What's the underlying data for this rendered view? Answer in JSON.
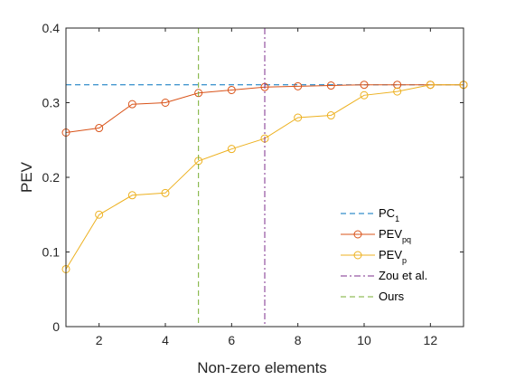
{
  "chart_data": {
    "type": "line",
    "xlabel": "Non-zero elements",
    "ylabel": "PEV",
    "xlim": [
      1,
      13
    ],
    "ylim": [
      0,
      0.4
    ],
    "xticks": [
      2,
      4,
      6,
      8,
      10,
      12
    ],
    "yticks": [
      0,
      0.1,
      0.2,
      0.3,
      0.4
    ],
    "ytick_labels": [
      "0",
      "0.1",
      "0.2",
      "0.3",
      "0.4"
    ],
    "x": [
      1,
      2,
      3,
      4,
      5,
      6,
      7,
      8,
      9,
      10,
      11,
      12,
      13
    ],
    "series": [
      {
        "name": "PC",
        "name_sub": "1",
        "style": "dashed",
        "color": "#0072BD",
        "marker": "none",
        "values": [
          0.324,
          0.324,
          0.324,
          0.324,
          0.324,
          0.324,
          0.324,
          0.324,
          0.324,
          0.324,
          0.324,
          0.324,
          0.324
        ]
      },
      {
        "name": "PEV",
        "name_sub": "pq",
        "style": "solid",
        "color": "#D95319",
        "marker": "circle",
        "values": [
          0.26,
          0.266,
          0.298,
          0.3,
          0.313,
          0.317,
          0.321,
          0.322,
          0.323,
          0.324,
          0.324,
          0.324,
          0.324
        ]
      },
      {
        "name": "PEV",
        "name_sub": "p",
        "style": "solid",
        "color": "#EDB120",
        "marker": "circle",
        "values": [
          0.077,
          0.15,
          0.176,
          0.179,
          0.222,
          0.238,
          0.252,
          0.28,
          0.283,
          0.31,
          0.315,
          0.324,
          0.324
        ]
      },
      {
        "name": "Zou et al.",
        "name_sub": "",
        "style": "dashdot",
        "color": "#7E2F8E",
        "marker": "none",
        "vertical_x": 7
      },
      {
        "name": "Ours",
        "name_sub": "",
        "style": "dashed",
        "color": "#77AC30",
        "marker": "none",
        "vertical_x": 5
      }
    ],
    "legend_position": "bottom-right",
    "grid": false
  }
}
